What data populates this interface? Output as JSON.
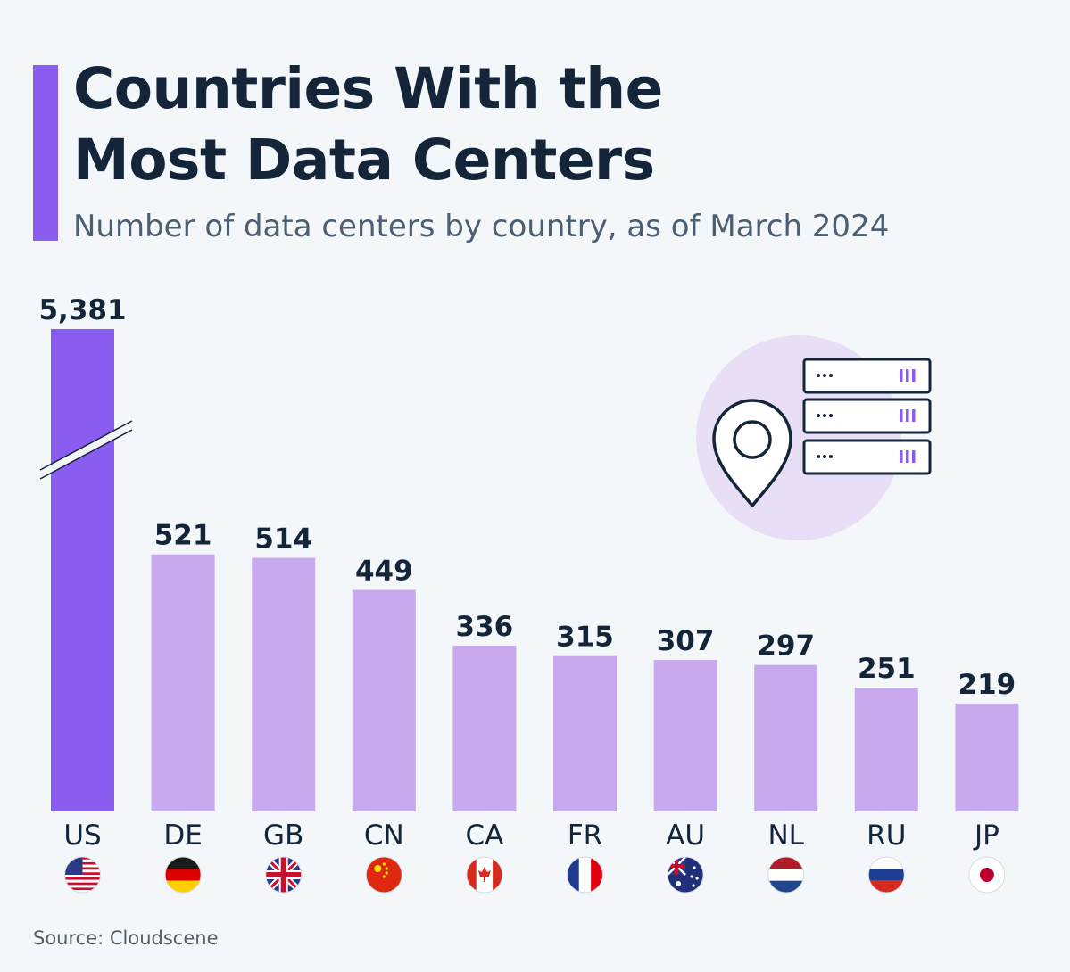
{
  "title_line1": "Countries With the",
  "title_line2": "Most Data Centers",
  "subtitle": "Number of data centers by country, as of March 2024",
  "source": "Source: Cloudscene",
  "colors": {
    "highlight_bar": "#8a5cf0",
    "bar": "#c9a9ee",
    "text_dark": "#14253a",
    "accent": "#8a5cf0"
  },
  "illustration": {
    "icons": [
      "map-pin-icon",
      "server-rack-icon"
    ]
  },
  "chart_data": {
    "type": "bar",
    "title": "Countries With the Most Data Centers",
    "subtitle": "Number of data centers by country, as of March 2024",
    "categories": [
      "US",
      "DE",
      "GB",
      "CN",
      "CA",
      "FR",
      "AU",
      "NL",
      "RU",
      "JP"
    ],
    "values": [
      5381,
      521,
      514,
      449,
      336,
      315,
      307,
      297,
      251,
      219
    ],
    "value_labels": [
      "5,381",
      "521",
      "514",
      "449",
      "336",
      "315",
      "307",
      "297",
      "251",
      "219"
    ],
    "flags": [
      "flag-us-icon",
      "flag-de-icon",
      "flag-gb-icon",
      "flag-cn-icon",
      "flag-ca-icon",
      "flag-fr-icon",
      "flag-au-icon",
      "flag-nl-icon",
      "flag-ru-icon",
      "flag-jp-icon"
    ],
    "axis_break": true,
    "highlight_index": 0,
    "grid": false,
    "legend": "none"
  }
}
